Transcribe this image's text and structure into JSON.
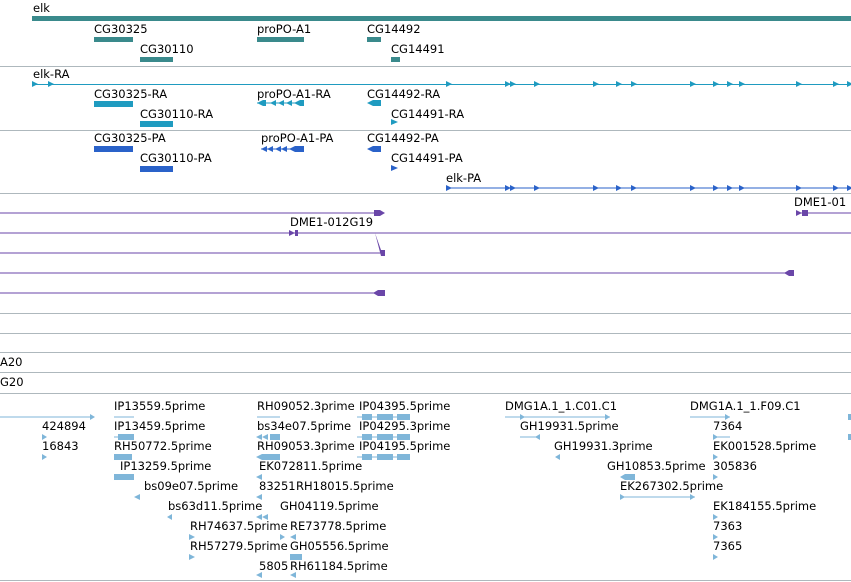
{
  "colors": {
    "gene": "#3a8a8c",
    "mrna": "#1f9bc0",
    "protein": "#2a62c9",
    "dme": "#6a46a8",
    "est": "#7fb6d9",
    "separator": "#aeb8bd"
  },
  "gene_track": {
    "top_label": "elk",
    "labels": [
      "CG30325",
      "CG30110",
      "proPO-A1",
      "CG14492",
      "CG14491"
    ]
  },
  "mrna_track": {
    "labels": [
      "elk-RA",
      "CG30325-RA",
      "CG30110-RA",
      "proPO-A1-RA",
      "CG14492-RA",
      "CG14491-RA"
    ]
  },
  "protein_track": {
    "labels": [
      "CG30325-PA",
      "CG30110-PA",
      "proPO-A1-PA",
      "CG14492-PA",
      "CG14491-PA",
      "elk-PA"
    ]
  },
  "dme_track": {
    "labels": [
      "DME1-012G19",
      "DME1-01"
    ]
  },
  "partial_labels": [
    "A20",
    "G20"
  ],
  "est_track": {
    "labels": [
      "424894",
      "16843",
      "IP13559.5prime",
      "IP13459.5prime",
      "RH50772.5prime",
      "IP13259.5prime",
      "bs09e07.5prime",
      "bs63d11.5prime",
      "RH74637.5prime",
      "RH57279.5prime",
      "RH09052.3prime",
      "bs34e07.5prime",
      "RH09053.3prime",
      "EK072811.5prime",
      "83251",
      "RH18015.5prime",
      "GH04119.5prime",
      "RE73778.5prime",
      "GH05556.5prime",
      "5805",
      "RH61184.5prime",
      "IP04395.5prime",
      "IP04295.3prime",
      "IP04195.5prime",
      "DMG1A.1_1.C01.C1",
      "GH19931.5prime",
      "GH19931.3prime",
      "GH10853.5prime",
      "EK267302.5prime",
      "DMG1A.1_1.F09.C1",
      "7364",
      "EK001528.5prime",
      "305836",
      "EK184155.5prime",
      "7363",
      "7365"
    ]
  }
}
